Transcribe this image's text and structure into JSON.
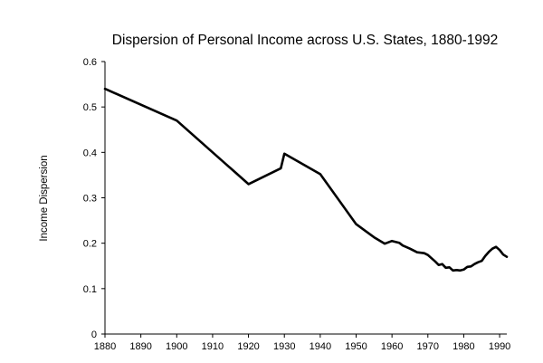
{
  "chart_data": {
    "type": "line",
    "title": "Dispersion of Personal Income across U.S. States, 1880-1992",
    "xlabel": "",
    "ylabel": "Income Dispersion",
    "xlim": [
      1880,
      1992
    ],
    "ylim": [
      0,
      0.6
    ],
    "x_ticks": [
      1880,
      1890,
      1900,
      1910,
      1920,
      1930,
      1940,
      1950,
      1960,
      1970,
      1980,
      1990
    ],
    "y_ticks": [
      0,
      0.1,
      0.2,
      0.3,
      0.4,
      0.5,
      0.6
    ],
    "y_tick_labels": [
      "0",
      "0.1",
      "0.2",
      "0.3",
      "0.4",
      "0.5",
      "0.6"
    ],
    "grid": false,
    "legend": "none",
    "line_color": "#000000",
    "series": [
      {
        "x": [
          1880,
          1900,
          1920,
          1929,
          1930,
          1940,
          1950,
          1955,
          1958,
          1960,
          1962,
          1963,
          1965,
          1967,
          1969,
          1970,
          1972,
          1973,
          1974,
          1975,
          1976,
          1977,
          1978,
          1979,
          1980,
          1981,
          1982,
          1983,
          1984,
          1985,
          1986,
          1987,
          1988,
          1989,
          1990,
          1991,
          1992
        ],
        "y": [
          0.54,
          0.47,
          0.33,
          0.365,
          0.397,
          0.352,
          0.242,
          0.213,
          0.199,
          0.205,
          0.201,
          0.195,
          0.188,
          0.18,
          0.178,
          0.174,
          0.16,
          0.152,
          0.154,
          0.146,
          0.147,
          0.14,
          0.141,
          0.14,
          0.142,
          0.148,
          0.149,
          0.154,
          0.158,
          0.161,
          0.172,
          0.181,
          0.188,
          0.192,
          0.185,
          0.175,
          0.17
        ]
      }
    ]
  }
}
